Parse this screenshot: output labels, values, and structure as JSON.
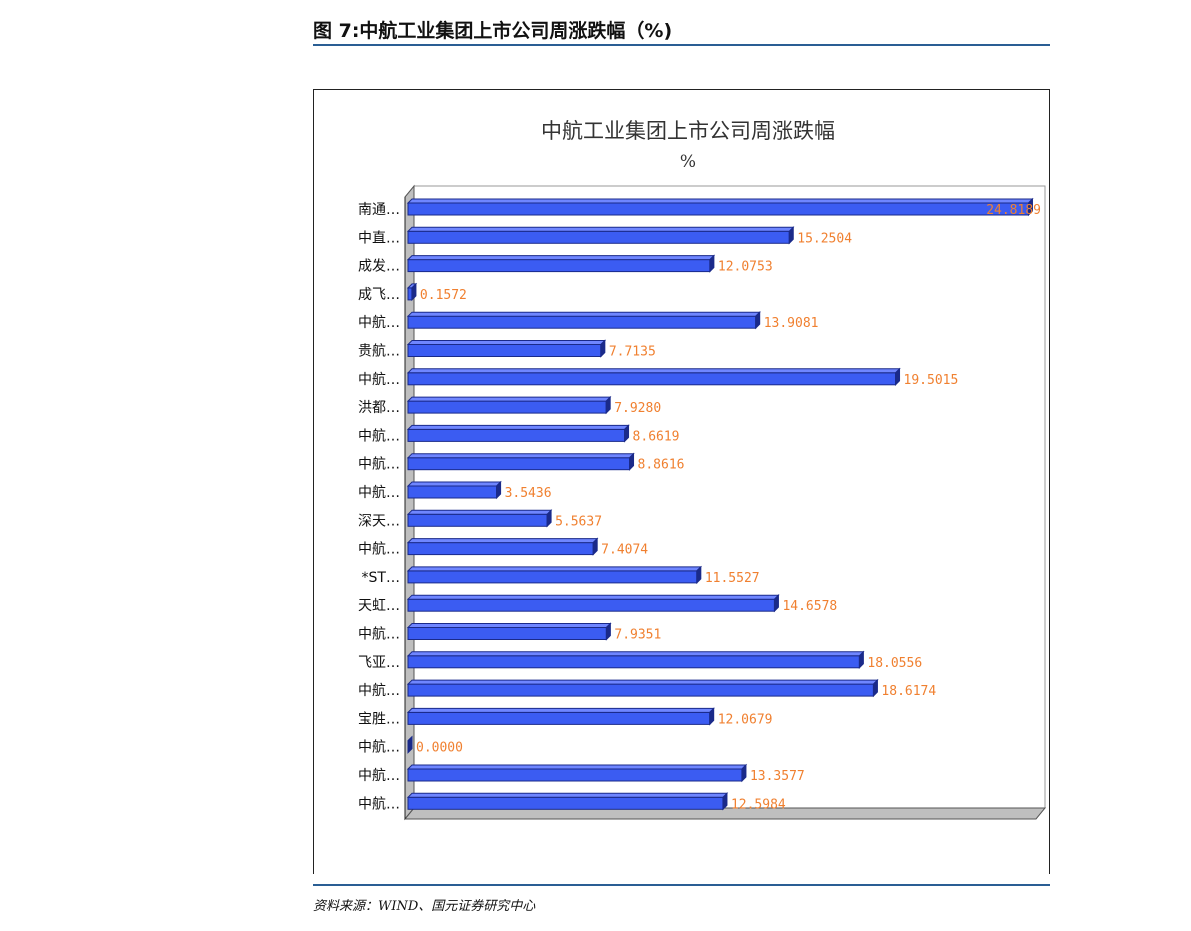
{
  "figure": {
    "caption": "图 7:中航工业集团上市公司周涨跌幅（%)",
    "source": "资料来源：WIND、国元证券研究中心"
  },
  "colors": {
    "bar": "#3b5cf2",
    "bar_dark": "#1a2a8a",
    "label": "#f08030",
    "rule": "#2a5e94"
  },
  "chart_data": {
    "type": "bar",
    "orientation": "horizontal",
    "title": "中航工业集团上市公司周涨跌幅",
    "subtitle": "%",
    "categories": [
      "南通…",
      "中直…",
      "成发…",
      "成飞…",
      "中航…",
      "贵航…",
      "中航…",
      "洪都…",
      "中航…",
      "中航…",
      "中航…",
      "深天…",
      "中航…",
      "*ST…",
      "天虹…",
      "中航…",
      "飞亚…",
      "中航…",
      "宝胜…",
      "中航…",
      "中航…",
      "中航…"
    ],
    "values": [
      24.8189,
      15.2504,
      12.0753,
      0.1572,
      13.9081,
      7.7135,
      19.5015,
      7.928,
      8.6619,
      8.8616,
      3.5436,
      5.5637,
      7.4074,
      11.5527,
      14.6578,
      7.9351,
      18.0556,
      18.6174,
      12.0679,
      0.0,
      13.3577,
      12.5984
    ],
    "data_labels": [
      "24.8189",
      "15.2504",
      "12.0753",
      "0.1572",
      "13.9081",
      "7.7135",
      "19.5015",
      "7.9280",
      "8.6619",
      "8.8616",
      "3.5436",
      "5.5637",
      "7.4074",
      "11.5527",
      "14.6578",
      "7.9351",
      "18.0556",
      "18.6174",
      "12.0679",
      "0.0000",
      "13.3577",
      "12.5984"
    ],
    "xlim": [
      0,
      25
    ],
    "grid": false,
    "legend": "none"
  }
}
